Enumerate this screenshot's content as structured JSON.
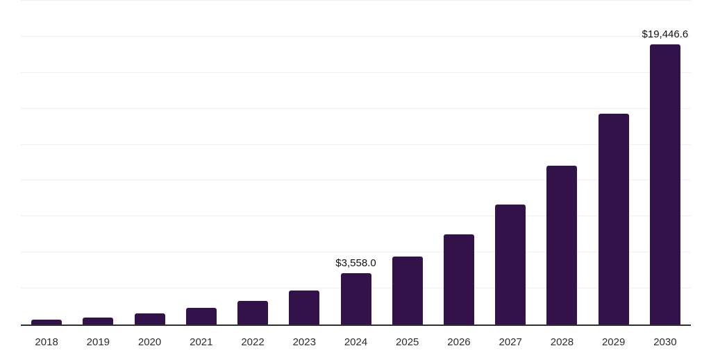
{
  "chart_data": {
    "type": "bar",
    "title": "",
    "xlabel": "",
    "ylabel": "",
    "categories": [
      "2018",
      "2019",
      "2020",
      "2021",
      "2022",
      "2023",
      "2024",
      "2025",
      "2026",
      "2027",
      "2028",
      "2029",
      "2030"
    ],
    "values": [
      360,
      495,
      760,
      1165,
      1620,
      2375,
      3558.0,
      4722,
      6268,
      8320,
      11043,
      14658,
      19446.6
    ],
    "bar_labels": [
      "",
      "",
      "",
      "",
      "",
      "",
      "$3,558.0",
      "",
      "",
      "",
      "",
      "",
      "$19,446.6"
    ],
    "ylim": [
      0,
      22500
    ],
    "gridline_step": 2500,
    "grid": "horizontal",
    "legend": "none",
    "colors": {
      "bar": "#331249",
      "axis_line": "#2f2f2f",
      "gridline": "#efefef",
      "bar_label_text": "#111111",
      "tick_label_text": "#2b2b2b",
      "background": "#ffffff"
    }
  }
}
